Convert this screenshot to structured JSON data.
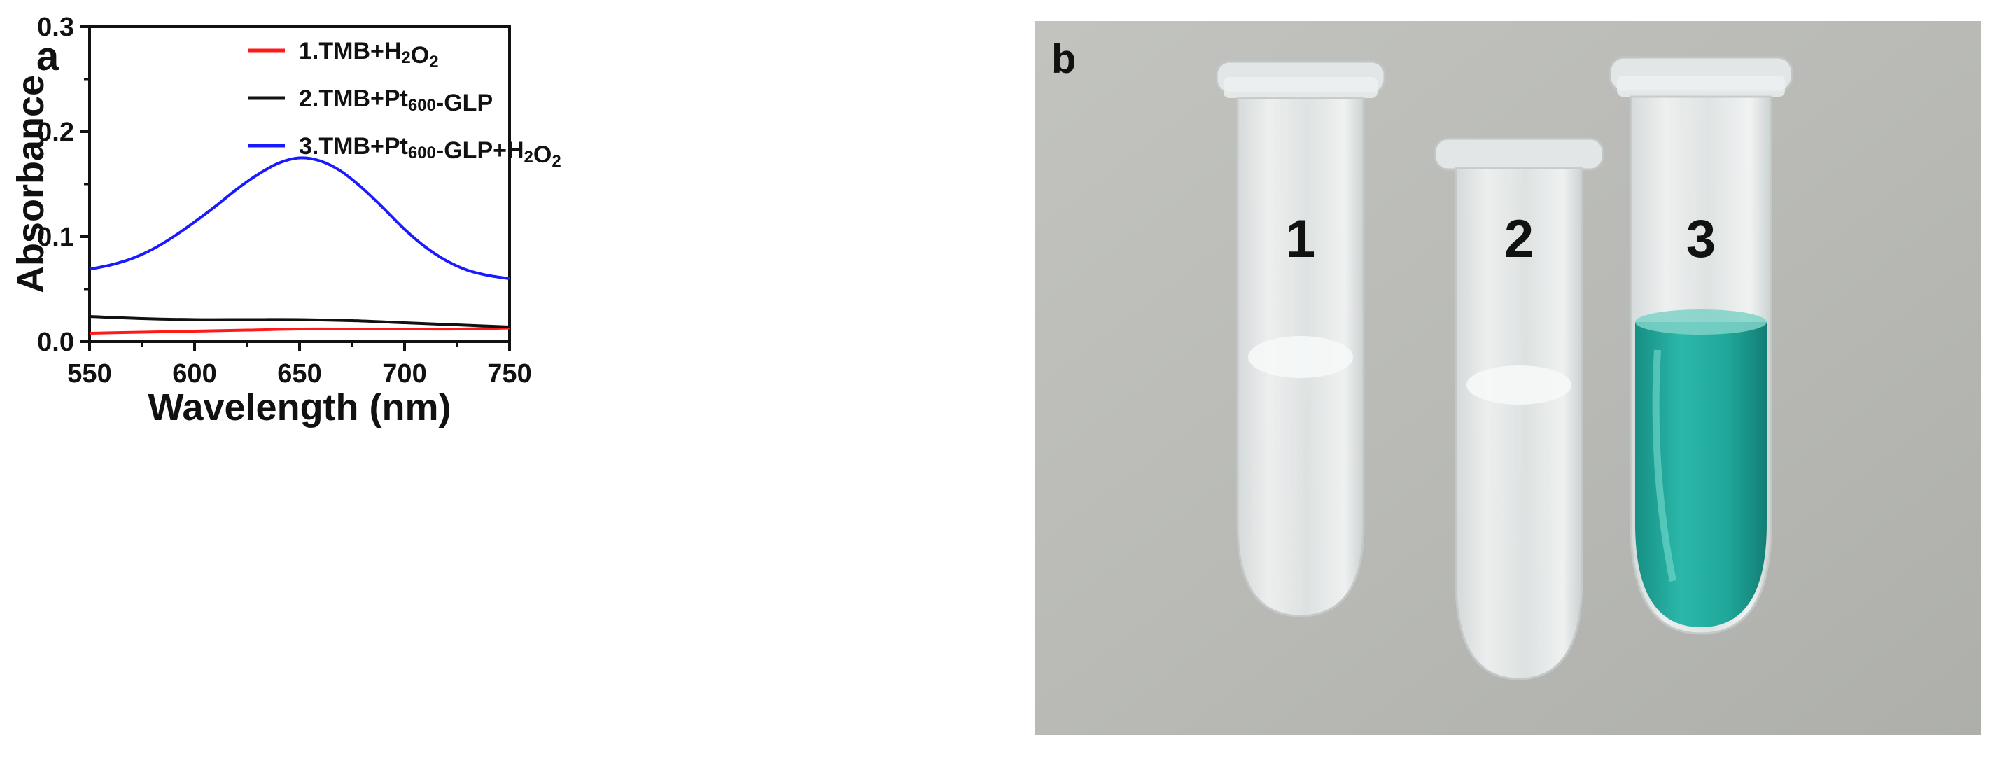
{
  "panel_a": {
    "label": "a"
  },
  "panel_b": {
    "label": "b",
    "tube_labels": [
      "1",
      "2",
      "3"
    ],
    "tube_colors": {
      "clear": "#e9eef0",
      "blue": "#1fa79a"
    },
    "background_color": "#b9bab6"
  },
  "chart_data": {
    "type": "line",
    "title": "",
    "xlabel": "Wavelength (nm)",
    "ylabel": "Absorbance",
    "xlim": [
      550,
      750
    ],
    "ylim": [
      0,
      0.3
    ],
    "xticks": [
      550,
      600,
      650,
      700,
      750
    ],
    "yticks": [
      0.0,
      0.1,
      0.2,
      0.3
    ],
    "xtick_labels": [
      "550",
      "600",
      "650",
      "700",
      "750"
    ],
    "ytick_labels": [
      "0.0",
      "0.1",
      "0.2",
      "0.3"
    ],
    "grid": false,
    "legend_position": "top-right",
    "series": [
      {
        "name": "1.TMB+H2O2",
        "label_parts": [
          [
            "1.TMB+H",
            ""
          ],
          [
            "2",
            "sub"
          ],
          [
            "O",
            ""
          ],
          [
            "2",
            "sub"
          ]
        ],
        "color": "#ff1a1a",
        "x": [
          550,
          575,
          600,
          625,
          650,
          675,
          700,
          725,
          750
        ],
        "y": [
          0.008,
          0.009,
          0.01,
          0.011,
          0.012,
          0.012,
          0.012,
          0.012,
          0.013
        ]
      },
      {
        "name": "2.TMB+Pt600-GLP",
        "label_parts": [
          [
            "2.TMB+Pt",
            ""
          ],
          [
            "600",
            "sub"
          ],
          [
            "-GLP",
            ""
          ]
        ],
        "color": "#111111",
        "x": [
          550,
          575,
          600,
          625,
          650,
          675,
          700,
          725,
          750
        ],
        "y": [
          0.024,
          0.022,
          0.021,
          0.021,
          0.021,
          0.02,
          0.018,
          0.016,
          0.014
        ]
      },
      {
        "name": "3.TMB+Pt600-GLP+H2O2",
        "label_parts": [
          [
            "3.TMB+Pt",
            ""
          ],
          [
            "600",
            "sub"
          ],
          [
            "-GLP+H",
            ""
          ],
          [
            "2",
            "sub"
          ],
          [
            "O",
            ""
          ],
          [
            "2",
            "sub"
          ]
        ],
        "color": "#1a1aff",
        "x": [
          550,
          560,
          570,
          580,
          590,
          600,
          610,
          620,
          630,
          640,
          650,
          660,
          670,
          680,
          690,
          700,
          710,
          720,
          730,
          740,
          750
        ],
        "y": [
          0.069,
          0.073,
          0.079,
          0.088,
          0.1,
          0.114,
          0.129,
          0.145,
          0.159,
          0.17,
          0.175,
          0.172,
          0.162,
          0.146,
          0.127,
          0.107,
          0.09,
          0.077,
          0.068,
          0.063,
          0.06
        ]
      }
    ]
  }
}
